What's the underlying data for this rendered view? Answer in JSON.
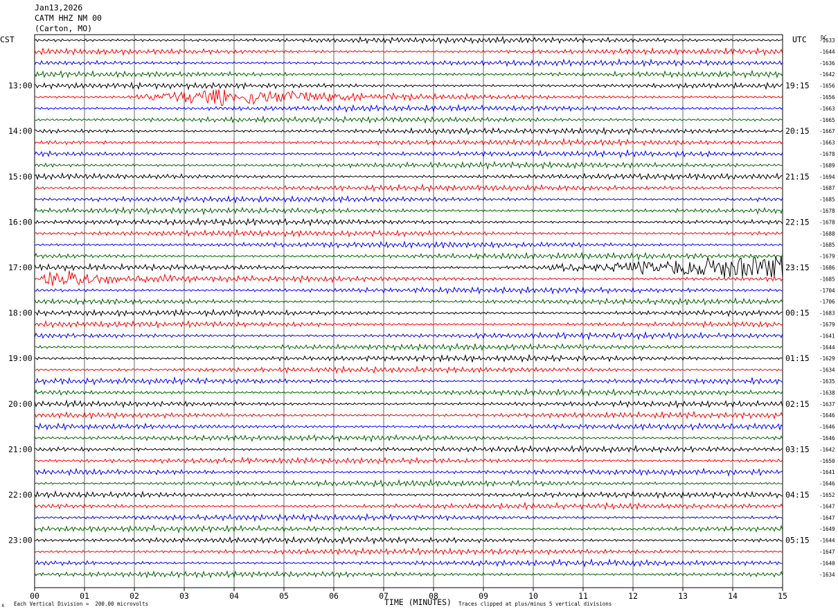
{
  "header": {
    "date": "Jan13,2026",
    "station": "CATM HHZ NM 00",
    "location": "(Carton, MO)"
  },
  "axes": {
    "left_tz": "CST",
    "right_tz": "UTC",
    "dc_label": "DC",
    "xlabel": "TIME (MINUTES)",
    "scale_note": "Each Vertical Division =  200.00 microvolts",
    "clip_note": "Traces clipped at plus/minus 5 vertical divisions",
    "corner_mark": "∧"
  },
  "chart_data": {
    "type": "line",
    "subtype": "helicorder",
    "x_ticks": [
      "00",
      "01",
      "02",
      "03",
      "04",
      "05",
      "06",
      "07",
      "08",
      "09",
      "10",
      "11",
      "12",
      "13",
      "14",
      "15"
    ],
    "xlim": [
      0,
      15
    ],
    "minutes_per_trace": 15,
    "trace_colors": [
      "#000000",
      "#ff0000",
      "#0000ff",
      "#006400"
    ],
    "left_hour_labels": [
      {
        "trace": 4,
        "label": "13:00"
      },
      {
        "trace": 8,
        "label": "14:00"
      },
      {
        "trace": 12,
        "label": "15:00"
      },
      {
        "trace": 16,
        "label": "16:00"
      },
      {
        "trace": 20,
        "label": "17:00"
      },
      {
        "trace": 24,
        "label": "18:00"
      },
      {
        "trace": 28,
        "label": "19:00"
      },
      {
        "trace": 32,
        "label": "20:00"
      },
      {
        "trace": 36,
        "label": "21:00"
      },
      {
        "trace": 40,
        "label": "22:00"
      },
      {
        "trace": 44,
        "label": "23:00"
      }
    ],
    "right_hour_labels": [
      {
        "trace": 4,
        "label": "19:15"
      },
      {
        "trace": 8,
        "label": "20:15"
      },
      {
        "trace": 12,
        "label": "21:15"
      },
      {
        "trace": 16,
        "label": "22:15"
      },
      {
        "trace": 20,
        "label": "23:15"
      },
      {
        "trace": 24,
        "label": "00:15"
      },
      {
        "trace": 28,
        "label": "01:15"
      },
      {
        "trace": 32,
        "label": "02:15"
      },
      {
        "trace": 36,
        "label": "03:15"
      },
      {
        "trace": 40,
        "label": "04:15"
      },
      {
        "trace": 44,
        "label": "05:15"
      }
    ],
    "dc_offsets": [
      "-1633",
      "-1644",
      "-1636",
      "-1642",
      "-1656",
      "-1656",
      "-1663",
      "-1665",
      "-1667",
      "-1663",
      "-1678",
      "-1689",
      "-1694",
      "-1687",
      "-1685",
      "-1678",
      "-1678",
      "-1688",
      "-1685",
      "-1679",
      "-1686",
      "-1685",
      "-1704",
      "-1706",
      "-1683",
      "-1679",
      "-1641",
      "-1644",
      "-1629",
      "-1634",
      "-1635",
      "-1638",
      "-1637",
      "-1646",
      "-1646",
      "-1646",
      "-1642",
      "-1650",
      "-1641",
      "-1646",
      "-1652",
      "-1647",
      "-1647",
      "-1649",
      "-1644",
      "-1647",
      "-1640",
      "-1634"
    ],
    "events": [
      {
        "trace": 5,
        "start_min": 1.5,
        "peak_min": 3.6,
        "end_min": 8.0,
        "amplitude": 0.95
      },
      {
        "trace": 21,
        "start_min": 0.0,
        "peak_min": 0.3,
        "end_min": 3.2,
        "amplitude": 0.9
      },
      {
        "trace": 20,
        "start_min": 8.5,
        "peak_min": 14.5,
        "end_min": 15.0,
        "amplitude": 1.0
      }
    ]
  }
}
